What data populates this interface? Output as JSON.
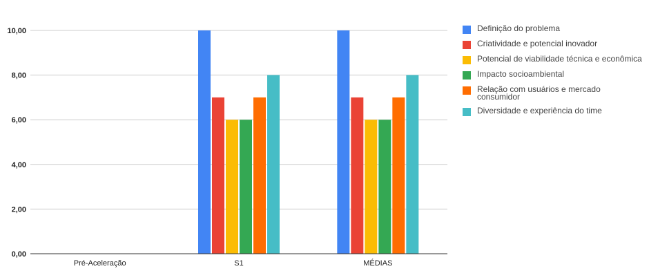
{
  "chart_data": {
    "type": "bar",
    "categories": [
      "Pré-Aceleração",
      "S1",
      "MÉDIAS"
    ],
    "y_tick_labels": [
      "0,00",
      "2,00",
      "4,00",
      "6,00",
      "8,00",
      "10,00"
    ],
    "ylim": [
      0,
      10
    ],
    "grid": true,
    "legend_position": "right",
    "series": [
      {
        "name": "Definição do problema",
        "color": "#4285f4",
        "values": [
          null,
          10,
          10
        ]
      },
      {
        "name": "Criatividade e potencial inovador",
        "color": "#ea4335",
        "values": [
          null,
          7,
          7
        ]
      },
      {
        "name": "Potencial de viabilidade técnica e econômica",
        "color": "#fbbc04",
        "values": [
          null,
          6,
          6
        ]
      },
      {
        "name": "Impacto socioambiental",
        "color": "#34a853",
        "values": [
          null,
          6,
          6
        ]
      },
      {
        "name": "Relação com usuários e mercado consumidor",
        "color": "#ff6d01",
        "values": [
          null,
          7,
          7
        ]
      },
      {
        "name": "Diversidade e experiência do time",
        "color": "#46bdc6",
        "values": [
          null,
          8,
          8
        ]
      }
    ]
  }
}
